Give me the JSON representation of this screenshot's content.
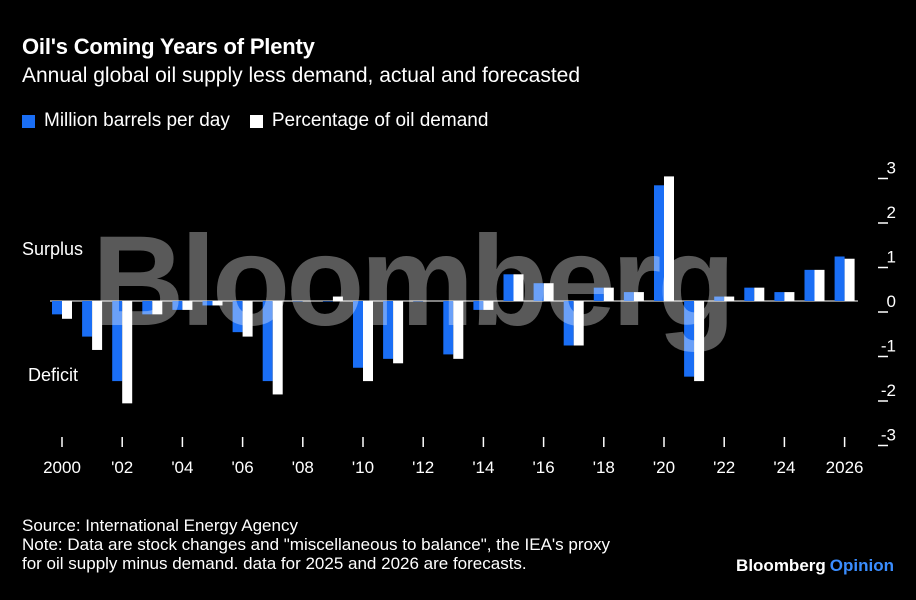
{
  "title": "Oil's Coming Years of Plenty",
  "subtitle": "Annual global oil supply less demand, actual and forecasted",
  "colors": {
    "series1": "#1a6ef5",
    "series2": "#ffffff",
    "background": "#000000",
    "accent": "#3a8dff"
  },
  "annotations": {
    "surplus": "Surplus",
    "deficit": "Deficit"
  },
  "watermark": "Bloomberg",
  "footer": {
    "source": "Source: International Energy Agency",
    "note1": "Note: Data are stock changes and \"miscellaneous to balance\", the IEA's proxy",
    "note2": "for oil supply minus demand. data for 2025 and 2026 are forecasts."
  },
  "brand": {
    "name": "Bloomberg",
    "suffix": "Opinion"
  },
  "chart_data": {
    "type": "bar",
    "x": [
      2000,
      2001,
      2002,
      2003,
      2004,
      2005,
      2006,
      2007,
      2008,
      2009,
      2010,
      2011,
      2012,
      2013,
      2014,
      2015,
      2016,
      2017,
      2018,
      2019,
      2020,
      2021,
      2022,
      2023,
      2024,
      2025,
      2026
    ],
    "series": [
      {
        "name": "Million barrels per day",
        "values": [
          -0.3,
          -0.8,
          -1.8,
          -0.3,
          -0.2,
          -0.1,
          -0.7,
          -1.8,
          0.0,
          0.0,
          -1.5,
          -1.3,
          0.0,
          -1.2,
          -0.2,
          0.6,
          0.4,
          -1.0,
          0.3,
          0.2,
          2.6,
          -1.7,
          0.1,
          0.3,
          0.2,
          0.7,
          1.0
        ]
      },
      {
        "name": "Percentage of oil demand",
        "values": [
          -0.4,
          -1.1,
          -2.3,
          -0.3,
          -0.2,
          -0.1,
          -0.8,
          -2.1,
          0.0,
          0.1,
          -1.8,
          -1.4,
          0.0,
          -1.3,
          -0.2,
          0.6,
          0.4,
          -1.0,
          0.3,
          0.2,
          2.8,
          -1.8,
          0.1,
          0.3,
          0.2,
          0.7,
          0.95
        ]
      }
    ],
    "xticks": [
      "2000",
      "'02",
      "'04",
      "'06",
      "'08",
      "'10",
      "'12",
      "'14",
      "'16",
      "'18",
      "'20",
      "'22",
      "'24",
      "2026"
    ],
    "yticks": [
      "3",
      "2",
      "1",
      "0",
      "-1",
      "-2",
      "-3"
    ],
    "ylim": [
      -3.5,
      3.5
    ],
    "legend": "top-left",
    "grid": false
  }
}
